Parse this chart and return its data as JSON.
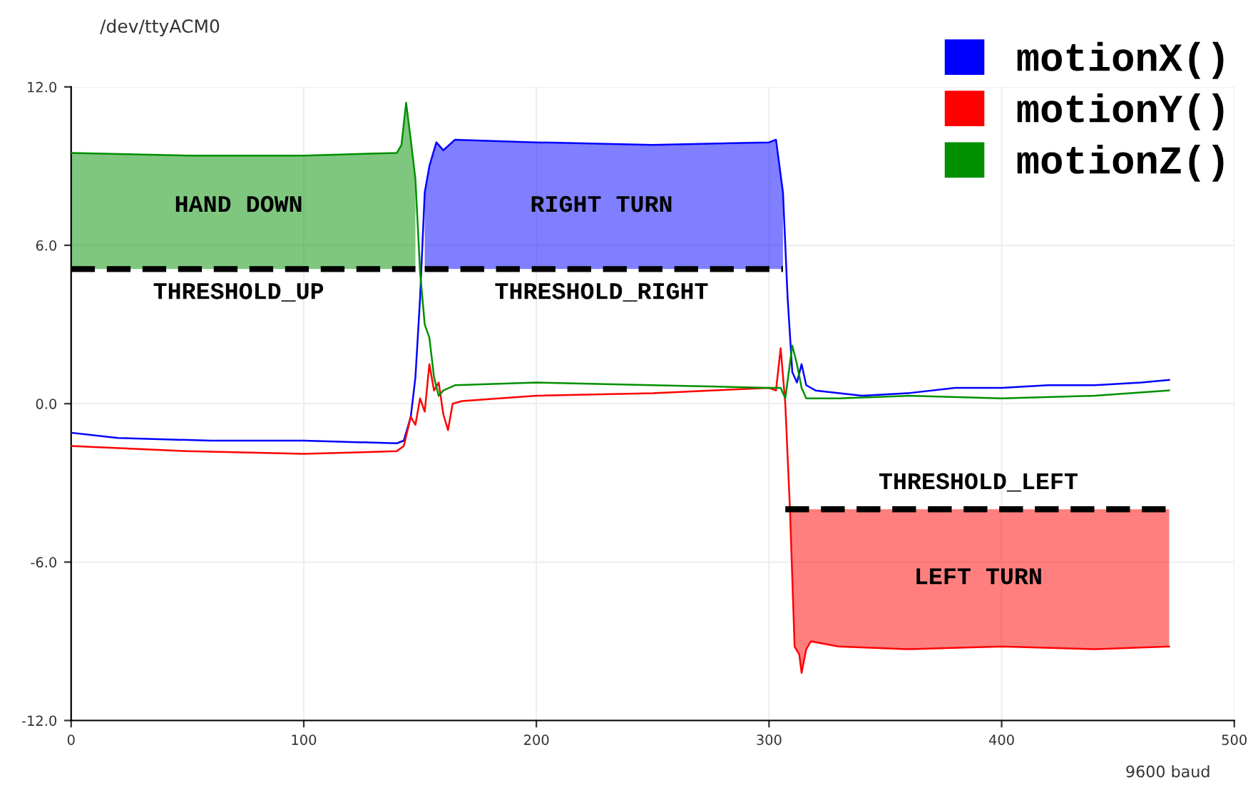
{
  "chart_data": {
    "type": "line",
    "title": "/dev/ttyACM0",
    "xlim": [
      0,
      500
    ],
    "xticks": [
      0,
      100,
      200,
      300,
      400,
      500
    ],
    "ylim": [
      -12,
      12
    ],
    "yticks": [
      {
        "value": -12,
        "label": "-12.0"
      },
      {
        "value": -6,
        "label": "-6.0"
      },
      {
        "value": 0,
        "label": "0.0"
      },
      {
        "value": 6,
        "label": "6.0"
      },
      {
        "value": 12,
        "label": "12.0"
      }
    ],
    "grid": true,
    "legend": "top right",
    "series": [
      {
        "name": "motionX()",
        "color": "#0000ff",
        "x": [
          0,
          20,
          60,
          100,
          140,
          143,
          146,
          148,
          150,
          152,
          154,
          157,
          160,
          165,
          200,
          250,
          300,
          303,
          306,
          308,
          310,
          312,
          314,
          316,
          320,
          340,
          360,
          380,
          400,
          420,
          440,
          460,
          472
        ],
        "values": [
          -1.1,
          -1.3,
          -1.4,
          -1.4,
          -1.5,
          -1.4,
          -0.5,
          1,
          4,
          8,
          9,
          9.9,
          9.6,
          10,
          9.9,
          9.8,
          9.9,
          10,
          8,
          4,
          1.2,
          0.8,
          1.5,
          0.7,
          0.5,
          0.3,
          0.4,
          0.6,
          0.6,
          0.7,
          0.7,
          0.8,
          0.9
        ],
        "lower": [
          null,
          null,
          null,
          null,
          null,
          null,
          null,
          null,
          null,
          5.1,
          5.1,
          5.1,
          5.1,
          5.1,
          5.1,
          5.1,
          5.1,
          5.1,
          5.1,
          null,
          null,
          null,
          null,
          null,
          null,
          null,
          null,
          null,
          null,
          null,
          null,
          null,
          null
        ],
        "upper": [
          null,
          null,
          null,
          null,
          null,
          null,
          null,
          null,
          null,
          8,
          9,
          9.9,
          9.6,
          10,
          9.9,
          9.8,
          9.9,
          10,
          8,
          null,
          null,
          null,
          null,
          null,
          null,
          null,
          null,
          null,
          null,
          null,
          null,
          null,
          null
        ]
      },
      {
        "name": "motionY()",
        "color": "#ff0000",
        "x": [
          0,
          50,
          100,
          140,
          143,
          146,
          148,
          150,
          152,
          154,
          156,
          158,
          160,
          162,
          164,
          168,
          200,
          250,
          300,
          303,
          305,
          307,
          309,
          311,
          313,
          314,
          316,
          318,
          330,
          360,
          400,
          440,
          472
        ],
        "values": [
          -1.6,
          -1.8,
          -1.9,
          -1.8,
          -1.6,
          -0.5,
          -0.8,
          0.2,
          -0.3,
          1.5,
          0.5,
          0.8,
          -0.4,
          -1,
          0,
          0.1,
          0.3,
          0.4,
          0.6,
          0.5,
          2.1,
          0,
          -4,
          -9.2,
          -9.5,
          -10.2,
          -9.3,
          -9,
          -9.2,
          -9.3,
          -9.2,
          -9.3,
          -9.2
        ],
        "lower": [
          null,
          null,
          null,
          null,
          null,
          null,
          null,
          null,
          null,
          null,
          null,
          null,
          null,
          null,
          null,
          null,
          null,
          null,
          null,
          null,
          null,
          null,
          -4,
          -9.2,
          -9.5,
          -10.2,
          -9.3,
          -9,
          -9.2,
          -9.3,
          -9.2,
          -9.3,
          -9.2
        ],
        "upper": [
          null,
          null,
          null,
          null,
          null,
          null,
          null,
          null,
          null,
          null,
          null,
          null,
          null,
          null,
          null,
          null,
          null,
          null,
          null,
          null,
          null,
          null,
          -4,
          -4,
          -4,
          -4,
          -4,
          -4,
          -4,
          -4,
          -4,
          -4,
          -4
        ]
      },
      {
        "name": "motionZ()",
        "color": "#009000",
        "x": [
          0,
          50,
          100,
          140,
          142,
          144,
          146,
          148,
          150,
          152,
          154,
          156,
          158,
          160,
          165,
          200,
          250,
          300,
          305,
          307,
          310,
          312,
          314,
          316,
          330,
          360,
          400,
          440,
          472
        ],
        "values": [
          9.5,
          9.4,
          9.4,
          9.5,
          9.8,
          11.4,
          10,
          8.5,
          5,
          3,
          2.5,
          1,
          0.3,
          0.5,
          0.7,
          0.8,
          0.7,
          0.6,
          0.6,
          0.2,
          2.2,
          1.5,
          0.6,
          0.2,
          0.2,
          0.3,
          0.2,
          0.3,
          0.5
        ],
        "lower": [
          5.1,
          5.1,
          5.1,
          5.1,
          5.1,
          5.1,
          5.1,
          5.1,
          null,
          null,
          null,
          null,
          null,
          null,
          null,
          null,
          null,
          null,
          null,
          null,
          null,
          null,
          null,
          null,
          null,
          null,
          null,
          null,
          null
        ],
        "upper": [
          9.5,
          9.4,
          9.4,
          9.5,
          9.8,
          11.4,
          10,
          8.5,
          null,
          null,
          null,
          null,
          null,
          null,
          null,
          null,
          null,
          null,
          null,
          null,
          null,
          null,
          null,
          null,
          null,
          null,
          null,
          null,
          null
        ]
      },
      {
        "color": "#000000",
        "line_style": "dashed",
        "x": [
          0,
          148
        ],
        "values": [
          5.1,
          5.1
        ]
      },
      {
        "color": "#000000",
        "line_style": "dashed",
        "x": [
          152,
          306
        ],
        "values": [
          5.1,
          5.1
        ]
      },
      {
        "color": "#000000",
        "line_style": "dashed",
        "x": [
          307,
          473
        ],
        "values": [
          -4,
          -4
        ]
      }
    ],
    "annotations": [
      "HAND DOWN",
      "RIGHT TURN",
      "THRESHOLD_UP",
      "THRESHOLD_RIGHT",
      "THRESHOLD_LEFT",
      "LEFT TURN",
      "9600 baud"
    ]
  }
}
